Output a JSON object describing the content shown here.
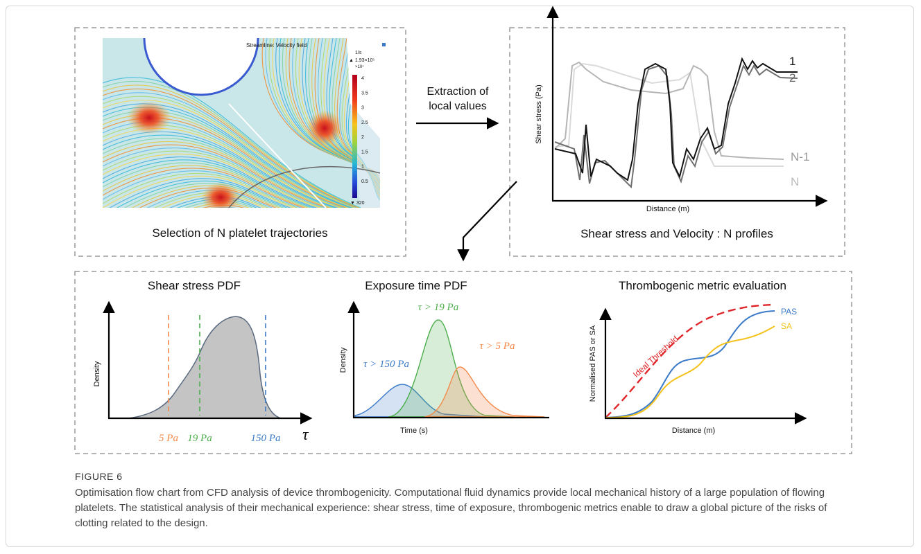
{
  "figure": {
    "trajectories_panel": {
      "plot_title": "Streamline: Velocity field",
      "colorbar_unit": "1/s",
      "colorbar_max": "▲ 1.93×10⁵",
      "colorbar_scale": "×10⁴",
      "colorbar_ticks": [
        "4",
        "3.5",
        "3",
        "2.5",
        "2",
        "1.5",
        "1",
        "0.5"
      ],
      "colorbar_min": "▼ 320",
      "caption": "Selection of N platelet trajectories"
    },
    "extraction_arrow": {
      "line1": "Extraction of",
      "line2": "local values"
    },
    "profiles_panel": {
      "y_label": "Shear stress (Pa)",
      "x_label": "Distance (m)",
      "curve_labels": [
        "1",
        "2",
        "N-1",
        "N"
      ],
      "caption": "Shear stress and Velocity : N profiles"
    },
    "shear_pdf": {
      "title": "Shear stress PDF",
      "y_label": "Density",
      "x_label": "τ",
      "thresholds": [
        "5 Pa",
        "19 Pa",
        "150 Pa"
      ]
    },
    "exposure_pdf": {
      "title": "Exposure time PDF",
      "y_label": "Density",
      "x_label": "Time (s)",
      "curve_labels": [
        "τ > 150 Pa",
        "τ > 19 Pa",
        "τ > 5 Pa"
      ]
    },
    "thrombogenic": {
      "title": "Thrombogenic metric evaluation",
      "y_label": "Normalised PAS or SA",
      "x_label": "Distance (m)",
      "threshold_label": "Ideal Threshold",
      "curve_labels": [
        "PAS",
        "SA"
      ]
    }
  },
  "caption": {
    "label": "FIGURE 6",
    "text": "Optimisation flow chart from CFD analysis of device thrombogenicity. Computational fluid dynamics provide local mechanical history of a large population of flowing platelets. The statistical analysis of their mechanical experience: shear stress, time of exposure, thrombogenic metrics enable to draw a global picture of the risks of clotting related to the design."
  }
}
